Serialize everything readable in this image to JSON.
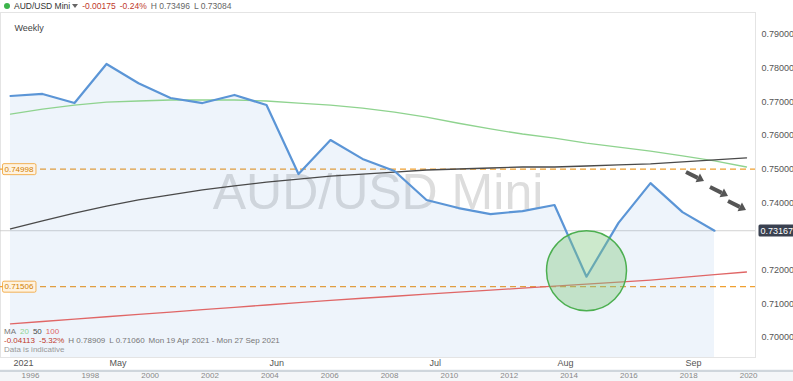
{
  "chart_data": [
    {
      "type": "line",
      "header": {
        "symbol": "AUD/USD Mini",
        "change": "-0.00175",
        "change_pct": "-0.24%",
        "high": "H 0.73496",
        "low": "L 0.73084"
      },
      "interval": "Weekly",
      "watermark": "AUD/USD Mini",
      "ma_label": "MA",
      "stats": [
        "-0.04113",
        "-5.32%",
        "H 0.78909",
        "L 0.71060",
        "Mon 19 Apr 2021 - Mon 27 Sep 2021"
      ],
      "note": "Data is indicative",
      "categories": [
        "2021",
        null,
        null,
        "May",
        null,
        null,
        null,
        null,
        "Jun",
        null,
        null,
        null,
        null,
        "Jul",
        null,
        null,
        null,
        "Aug",
        null,
        null,
        null,
        "Sep",
        null,
        null
      ],
      "series": [
        {
          "name": "AUD/USD Mini",
          "type": "area",
          "color": "#5b95d6",
          "values": [
            0.7717,
            0.7723,
            0.7696,
            0.7812,
            0.7755,
            0.7711,
            0.7696,
            0.772,
            0.769,
            0.7485,
            0.7586,
            0.753,
            0.7494,
            0.7408,
            0.7384,
            0.7366,
            0.7375,
            0.7393,
            0.718,
            0.734,
            0.7458,
            0.7372,
            0.73167,
            null
          ]
        },
        {
          "name": "20",
          "type": "line",
          "color": "#8fd38f",
          "values": [
            0.7663,
            0.7678,
            0.769,
            0.7699,
            0.7702,
            0.7705,
            0.7705,
            0.7705,
            0.7702,
            0.7696,
            0.769,
            0.7681,
            0.7669,
            0.7654,
            0.7636,
            0.7619,
            0.7604,
            0.7592,
            0.7577,
            0.7565,
            0.7553,
            0.7539,
            0.7524,
            0.7506
          ]
        },
        {
          "name": "50",
          "type": "line",
          "color": "#4a4a4a",
          "values": [
            0.7322,
            0.7346,
            0.7369,
            0.739,
            0.7408,
            0.7423,
            0.7438,
            0.745,
            0.7461,
            0.747,
            0.7479,
            0.7485,
            0.7491,
            0.7497,
            0.75,
            0.7503,
            0.7506,
            0.7506,
            0.7509,
            0.7512,
            0.7515,
            0.7521,
            0.7527,
            0.7533
          ]
        },
        {
          "name": "100",
          "type": "line",
          "color": "#e06666",
          "values": [
            0.704,
            0.7047,
            0.7054,
            0.7061,
            0.7068,
            0.7075,
            0.7082,
            0.7089,
            0.7096,
            0.7103,
            0.711,
            0.7116,
            0.7122,
            0.7128,
            0.7134,
            0.714,
            0.7146,
            0.7152,
            0.7158,
            0.7164,
            0.717,
            0.7178,
            0.7186,
            0.7194
          ]
        }
      ],
      "levels": [
        {
          "value": 0.74998,
          "label": "0.74998"
        },
        {
          "value": 0.71506,
          "label": "0.71506"
        }
      ],
      "level_color": "#f0a030",
      "last_price": {
        "value": 0.73167,
        "label": "0.73167"
      },
      "ylim": [
        0.694,
        0.7965
      ],
      "yticks": [
        {
          "value": 0.7,
          "label": "0.70000"
        },
        {
          "value": 0.71,
          "label": "0.71000"
        },
        {
          "value": 0.72,
          "label": "0.72000"
        },
        {
          "value": 0.74,
          "label": "0.74000"
        },
        {
          "value": 0.75,
          "label": "0.75000"
        },
        {
          "value": 0.76,
          "label": "0.76000"
        },
        {
          "value": 0.77,
          "label": "0.77000"
        },
        {
          "value": 0.78,
          "label": "0.78000"
        },
        {
          "value": 0.79,
          "label": "0.79000"
        }
      ],
      "grid": false
    },
    {
      "type": "timeline",
      "xlim": [
        1995,
        2021.5
      ],
      "xticks": [
        1996,
        1998,
        2000,
        2002,
        2004,
        2006,
        2008,
        2010,
        2012,
        2014,
        2016,
        2018,
        2020
      ]
    }
  ]
}
